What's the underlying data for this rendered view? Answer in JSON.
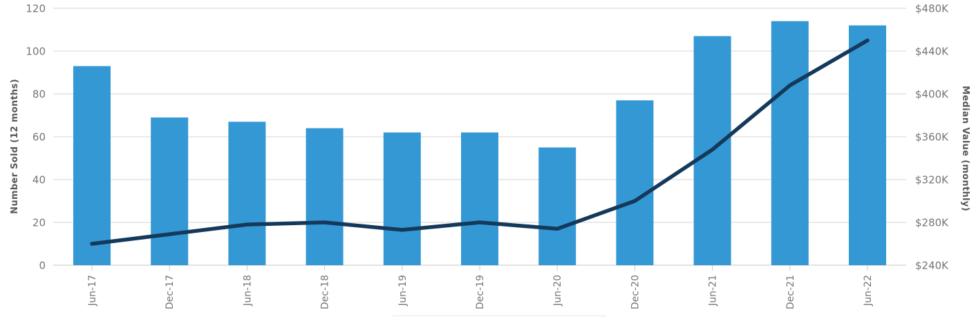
{
  "chart_data": {
    "type": "combo-bar-line",
    "categories": [
      "Jun-17",
      "Dec-17",
      "Jun-18",
      "Dec-18",
      "Jun-19",
      "Dec-19",
      "Jun-20",
      "Dec-20",
      "Jun-21",
      "Dec-21",
      "Jun-22"
    ],
    "series": [
      {
        "name": "Number Sold (12 months)",
        "type": "bar",
        "axis": "left",
        "color": "#3498d4",
        "values": [
          93,
          69,
          67,
          64,
          62,
          62,
          55,
          77,
          107,
          114,
          112
        ]
      },
      {
        "name": "Median Value (monthly)",
        "type": "line",
        "axis": "right",
        "color": "#15395b",
        "unit": "thousand USD",
        "values": [
          260,
          269,
          278,
          280,
          273,
          280,
          274,
          300,
          348,
          408,
          450
        ]
      }
    ],
    "left_axis": {
      "title": "Number Sold (12 months)",
      "ticks": [
        0,
        20,
        40,
        60,
        80,
        100,
        120
      ],
      "range": [
        0,
        120
      ]
    },
    "right_axis": {
      "title": "Median Value (monthly)",
      "tick_labels": [
        "$240K",
        "$280K",
        "$320K",
        "$360K",
        "$400K",
        "$440K",
        "$480K"
      ],
      "range": [
        240,
        480
      ]
    },
    "grid": true,
    "legend_position": "bottom (cut off at screenshot edge)",
    "colors": {
      "bar": "#3498d4",
      "line": "#15395b",
      "gridline": "#d4d4d4",
      "baseline": "#c6c6c6",
      "tick_label": "#757575",
      "axis_title": "#595959",
      "background": "#ffffff"
    }
  }
}
